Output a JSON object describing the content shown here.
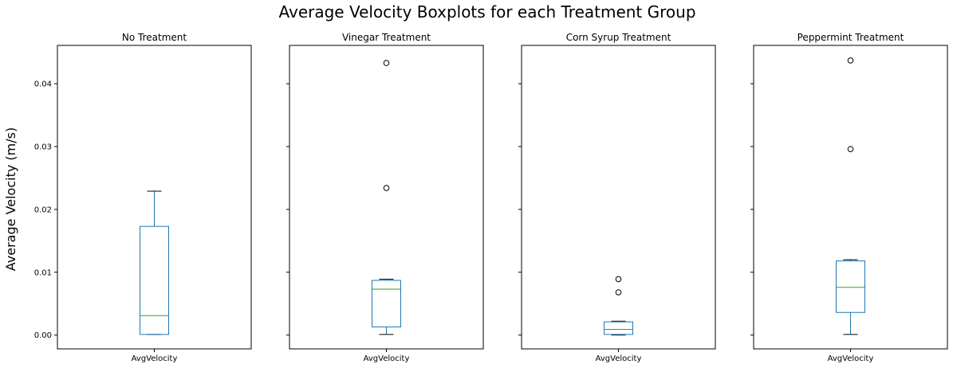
{
  "chart_data": {
    "type": "boxplot",
    "title": "Average Velocity Boxplots for each Treatment Group",
    "ylabel": "Average Velocity (m/s)",
    "ylim": [
      -0.0022,
      0.0461
    ],
    "yticks": [
      0.0,
      0.01,
      0.02,
      0.03,
      0.04
    ],
    "ytick_labels": [
      "0.00",
      "0.01",
      "0.02",
      "0.03",
      "0.04"
    ],
    "box_color": "#1f77b4",
    "median_color": "#2ca02c",
    "grid": false,
    "panels": [
      {
        "title": "No Treatment",
        "xtick_label": "AvgVelocity",
        "whisker_low": 0.0001,
        "q1": 0.0001,
        "median": 0.0031,
        "q3": 0.0173,
        "whisker_high": 0.0229,
        "outliers": []
      },
      {
        "title": "Vinegar Treatment",
        "xtick_label": "AvgVelocity",
        "whisker_low": 0.0001,
        "q1": 0.0013,
        "median": 0.0073,
        "q3": 0.0087,
        "whisker_high": 0.0089,
        "outliers": [
          0.0234,
          0.0433
        ]
      },
      {
        "title": "Corn Syrup Treatment",
        "xtick_label": "AvgVelocity",
        "whisker_low": 0.0,
        "q1": 0.0001,
        "median": 0.0009,
        "q3": 0.0021,
        "whisker_high": 0.0022,
        "outliers": [
          0.0068,
          0.0089
        ]
      },
      {
        "title": "Peppermint Treatment",
        "xtick_label": "AvgVelocity",
        "whisker_low": 0.0001,
        "q1": 0.0036,
        "median": 0.0076,
        "q3": 0.0118,
        "whisker_high": 0.012,
        "outliers": [
          0.0296,
          0.0437
        ]
      }
    ]
  }
}
